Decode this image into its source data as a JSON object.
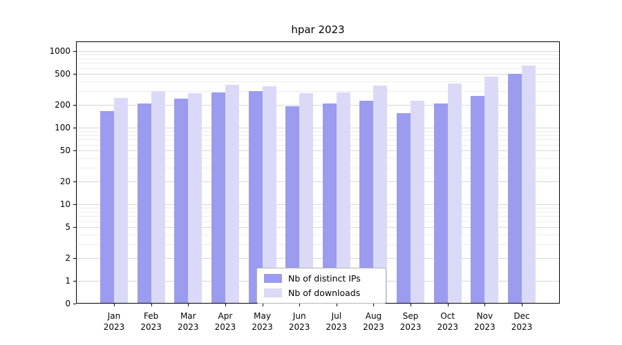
{
  "title": "hpar 2023",
  "chart_data": {
    "type": "bar",
    "title": "hpar 2023",
    "scale": "symlog",
    "grid": true,
    "legend_position": "lower center",
    "categories": [
      "Jan",
      "Feb",
      "Mar",
      "Apr",
      "May",
      "Jun",
      "Jul",
      "Aug",
      "Sep",
      "Oct",
      "Nov",
      "Dec"
    ],
    "category_year": "2023",
    "yticks": [
      0,
      1,
      2,
      5,
      10,
      20,
      50,
      100,
      200,
      500,
      1000
    ],
    "minor_yticks": [
      3,
      4,
      6,
      7,
      8,
      9,
      30,
      40,
      60,
      70,
      80,
      90,
      300,
      400,
      600,
      700,
      800,
      900
    ],
    "ylim": [
      0,
      1100
    ],
    "series": [
      {
        "name": "Nb of distinct IPs",
        "color": "#9b9bef",
        "values": [
          165,
          205,
          240,
          290,
          300,
          190,
          205,
          225,
          155,
          205,
          260,
          500
        ]
      },
      {
        "name": "Nb of downloads",
        "color": "#dadaf8",
        "values": [
          245,
          300,
          285,
          360,
          350,
          285,
          290,
          355,
          225,
          380,
          460,
          650
        ]
      }
    ]
  }
}
